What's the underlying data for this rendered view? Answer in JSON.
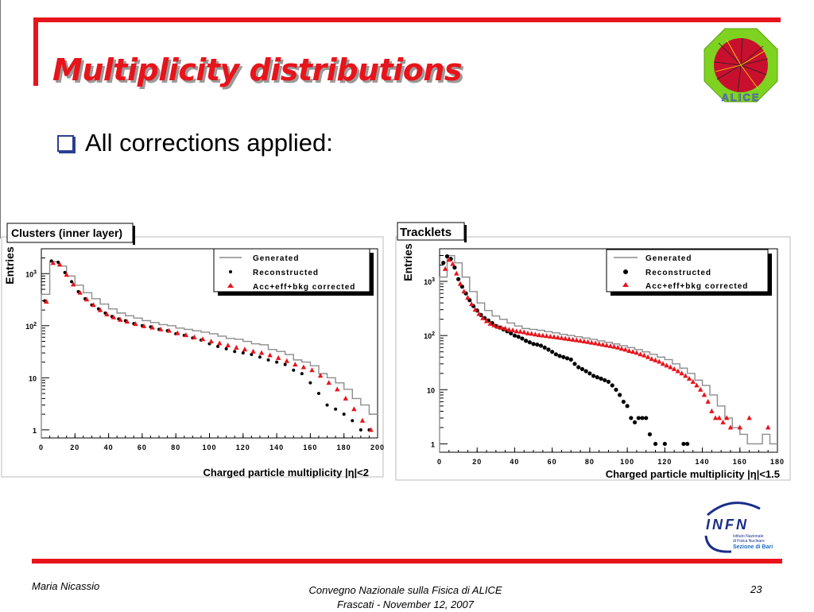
{
  "slide": {
    "title": "Multiplicity distributions",
    "bullet": "All corrections applied:",
    "footer_author": "Maria Nicassio",
    "footer_event_line1": "Convegno Nazionale sulla Fisica di ALICE",
    "footer_event_line2": "Frascati -  November 12, 2007",
    "page_number": "23",
    "logo_alice_text": "ALICE",
    "logo_infn_text": "INFN",
    "logo_infn_sub1": "Istituto Nazionale",
    "logo_infn_sub2": "di Fisica Nucleare",
    "logo_infn_sub3": "Sezione di Bari",
    "colors": {
      "accent_red": "#e8141b",
      "bullet_blue": "#2c3f8f",
      "marker_red": "#e8141b",
      "histogram_grey": "#8c8c8c"
    }
  },
  "chart_data": [
    {
      "type": "scatter",
      "title": "Clusters (inner layer)",
      "xlabel": "Charged particle multiplicity |η|<2",
      "ylabel": "Entries",
      "xlim": [
        0,
        200
      ],
      "ylim": [
        0.7,
        3000
      ],
      "yscale": "log",
      "xticks": [
        "0",
        "20",
        "40",
        "60",
        "80",
        "100",
        "120",
        "140",
        "160",
        "180",
        "200"
      ],
      "yticks": [
        {
          "value": 1,
          "label": "1"
        },
        {
          "value": 10,
          "label": "10"
        },
        {
          "value": 100,
          "label": "10^2"
        },
        {
          "value": 1000,
          "label": "10^3"
        }
      ],
      "legend": {
        "position": "top-right",
        "entries": [
          "Generated",
          "Reconstructed",
          "Acc+eff+bkg corrected"
        ]
      },
      "series": [
        {
          "name": "Generated",
          "style": "histogram",
          "x": [
            0,
            5,
            10,
            15,
            20,
            25,
            30,
            35,
            40,
            45,
            50,
            55,
            60,
            65,
            70,
            75,
            80,
            85,
            90,
            95,
            100,
            105,
            110,
            115,
            120,
            125,
            130,
            135,
            140,
            145,
            150,
            155,
            160,
            165,
            170,
            175,
            180,
            185,
            190,
            195,
            200
          ],
          "y": [
            400,
            1700,
            1400,
            900,
            600,
            430,
            330,
            260,
            210,
            175,
            155,
            140,
            125,
            115,
            105,
            100,
            90,
            85,
            80,
            75,
            70,
            63,
            57,
            55,
            50,
            45,
            43,
            35,
            32,
            28,
            22,
            20,
            17,
            12,
            10,
            8,
            6,
            4,
            3,
            2,
            1
          ]
        },
        {
          "name": "Reconstructed",
          "style": "dot",
          "x": [
            2,
            6,
            10,
            14,
            18,
            22,
            26,
            30,
            34,
            38,
            42,
            46,
            50,
            55,
            60,
            65,
            70,
            75,
            80,
            85,
            90,
            95,
            100,
            105,
            110,
            115,
            120,
            125,
            130,
            135,
            140,
            145,
            150,
            155,
            160,
            165,
            170,
            175,
            180,
            185,
            190,
            195
          ],
          "y": [
            300,
            1750,
            1650,
            1050,
            700,
            450,
            330,
            250,
            210,
            175,
            150,
            135,
            125,
            110,
            100,
            95,
            85,
            80,
            70,
            65,
            58,
            53,
            45,
            40,
            36,
            32,
            30,
            28,
            25,
            22,
            20,
            18,
            14,
            12,
            8,
            5,
            3,
            2.5,
            2,
            1.5,
            1,
            1
          ]
        },
        {
          "name": "Acc+eff+bkg corrected",
          "style": "triangle",
          "x": [
            3,
            7,
            11,
            15,
            19,
            23,
            27,
            31,
            35,
            39,
            43,
            47,
            51,
            56,
            61,
            66,
            71,
            76,
            81,
            86,
            91,
            96,
            101,
            106,
            111,
            116,
            121,
            126,
            131,
            136,
            141,
            146,
            151,
            156,
            161,
            166,
            171,
            176,
            181,
            186,
            191,
            196
          ],
          "y": [
            290,
            1600,
            1500,
            950,
            620,
            430,
            320,
            250,
            200,
            165,
            145,
            130,
            120,
            108,
            98,
            92,
            85,
            80,
            72,
            66,
            60,
            55,
            50,
            46,
            42,
            38,
            35,
            32,
            30,
            27,
            24,
            21,
            18,
            16,
            14,
            11,
            8,
            6,
            4,
            2.5,
            1.5,
            1
          ]
        }
      ]
    },
    {
      "type": "scatter",
      "title": "Tracklets",
      "xlabel": "Charged particle multiplicity |η|<1.5",
      "ylabel": "Entries",
      "xlim": [
        0,
        180
      ],
      "ylim": [
        0.7,
        4000
      ],
      "yscale": "log",
      "xticks": [
        "0",
        "20",
        "40",
        "60",
        "80",
        "100",
        "120",
        "140",
        "160",
        "180"
      ],
      "yticks": [
        {
          "value": 1,
          "label": "1"
        },
        {
          "value": 10,
          "label": "10"
        },
        {
          "value": 100,
          "label": "10^2"
        },
        {
          "value": 1000,
          "label": "10^3"
        }
      ],
      "legend": {
        "position": "top-right",
        "entries": [
          "Generated",
          "Reconstructed",
          "Acc+eff+bkg corrected"
        ]
      },
      "series": [
        {
          "name": "Generated",
          "style": "histogram",
          "x": [
            0,
            4,
            8,
            12,
            16,
            20,
            24,
            28,
            32,
            36,
            40,
            44,
            48,
            52,
            56,
            60,
            64,
            68,
            72,
            76,
            80,
            84,
            88,
            92,
            96,
            100,
            104,
            108,
            112,
            116,
            120,
            124,
            128,
            132,
            136,
            140,
            144,
            148,
            152,
            156,
            160,
            164,
            168,
            172,
            176,
            180
          ],
          "y": [
            1200,
            3000,
            2200,
            1200,
            650,
            400,
            290,
            230,
            200,
            170,
            150,
            135,
            130,
            125,
            118,
            112,
            105,
            100,
            95,
            90,
            85,
            80,
            75,
            70,
            65,
            60,
            55,
            50,
            45,
            40,
            36,
            30,
            25,
            20,
            15,
            12,
            8,
            5,
            3,
            2,
            1.5,
            1,
            1,
            1.5,
            1,
            1
          ]
        },
        {
          "name": "Reconstructed",
          "style": "dot",
          "x": [
            2,
            4,
            6,
            8,
            10,
            12,
            14,
            16,
            18,
            20,
            22,
            24,
            26,
            28,
            30,
            32,
            34,
            36,
            38,
            40,
            42,
            44,
            46,
            48,
            50,
            52,
            54,
            56,
            58,
            60,
            62,
            64,
            66,
            68,
            70,
            72,
            74,
            76,
            78,
            80,
            82,
            84,
            86,
            88,
            90,
            92,
            94,
            96,
            98,
            100,
            102,
            104,
            106,
            108,
            110,
            112,
            115,
            120,
            130,
            132
          ],
          "y": [
            2200,
            2900,
            2600,
            1800,
            1100,
            800,
            600,
            450,
            350,
            290,
            240,
            210,
            190,
            170,
            150,
            140,
            130,
            120,
            110,
            100,
            95,
            88,
            80,
            75,
            70,
            68,
            65,
            60,
            55,
            50,
            45,
            42,
            40,
            38,
            36,
            30,
            26,
            24,
            22,
            20,
            18,
            17,
            16,
            15,
            14,
            12,
            10,
            8,
            6,
            5,
            3,
            2.5,
            3,
            3,
            3,
            1.5,
            1,
            1,
            1,
            1
          ]
        },
        {
          "name": "Acc+eff+bkg corrected",
          "style": "triangle",
          "x": [
            3,
            5,
            7,
            9,
            11,
            13,
            15,
            17,
            19,
            21,
            23,
            25,
            27,
            29,
            31,
            33,
            35,
            37,
            39,
            41,
            43,
            45,
            47,
            49,
            51,
            53,
            55,
            57,
            59,
            61,
            63,
            65,
            67,
            69,
            71,
            73,
            75,
            77,
            79,
            81,
            83,
            85,
            87,
            89,
            91,
            93,
            95,
            97,
            99,
            101,
            103,
            105,
            107,
            109,
            111,
            113,
            115,
            117,
            119,
            121,
            123,
            125,
            127,
            129,
            131,
            133,
            135,
            137,
            139,
            141,
            143,
            145,
            147,
            149,
            151,
            153,
            155,
            160,
            165,
            175
          ],
          "y": [
            1700,
            2500,
            2100,
            1400,
            900,
            650,
            500,
            380,
            300,
            250,
            210,
            185,
            165,
            155,
            145,
            140,
            135,
            128,
            125,
            120,
            118,
            115,
            110,
            108,
            105,
            102,
            100,
            98,
            96,
            94,
            92,
            90,
            88,
            86,
            84,
            82,
            80,
            78,
            76,
            74,
            72,
            70,
            68,
            66,
            64,
            62,
            60,
            57,
            55,
            52,
            50,
            48,
            45,
            43,
            40,
            37,
            35,
            33,
            30,
            28,
            26,
            24,
            22,
            20,
            18,
            16,
            14,
            12,
            10,
            8,
            6,
            4,
            3,
            3,
            2.5,
            3,
            2,
            2,
            3,
            2
          ]
        }
      ]
    }
  ]
}
